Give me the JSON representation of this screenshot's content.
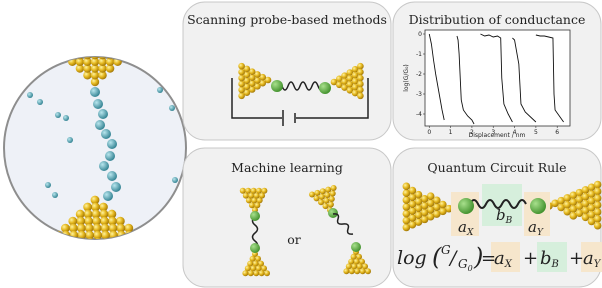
{
  "panels": {
    "scanning": {
      "title": "Scanning probe-based methods"
    },
    "distribution": {
      "title": "Distribution of conductance"
    },
    "machine": {
      "title": "Machine learning",
      "or": "or"
    },
    "quantum": {
      "title": "Quantum Circuit Rule"
    }
  },
  "quantum": {
    "terms": [
      {
        "sym": "a",
        "sub": "X"
      },
      {
        "sym": "b",
        "sub": "B"
      },
      {
        "sym": "a",
        "sub": "Y"
      }
    ],
    "equation": {
      "func": "log",
      "open": "(",
      "num": "G",
      "slash": "/",
      "den": "G",
      "den_sub": "0",
      "close": ")",
      "eq": "=",
      "plus": "+"
    }
  },
  "chart_data": {
    "type": "line",
    "x_label": "Displacement / nm",
    "y_label": "log(G/G₀)",
    "xlim": [
      -0.2,
      6.6
    ],
    "ylim": [
      -4.6,
      0.2
    ],
    "xticks": [
      0,
      1,
      2,
      3,
      4,
      5,
      6
    ],
    "yticks": [
      0,
      -1,
      -2,
      -3,
      -4
    ],
    "series": [
      {
        "color": "#111111",
        "x": [
          0,
          0.1,
          0.2,
          0.3,
          0.4,
          0.5,
          0.6,
          0.7
        ],
        "values": [
          0,
          -0.5,
          -1.3,
          -2,
          -2.6,
          -3.2,
          -3.8,
          -4.3
        ]
      },
      {
        "color": "#111111",
        "x": [
          1.3,
          1.35,
          1.4,
          1.5,
          1.6,
          1.8,
          2.0,
          2.1
        ],
        "values": [
          -0.1,
          -0.3,
          -1,
          -3.3,
          -3.8,
          -4.1,
          -4.3,
          -4.5
        ]
      },
      {
        "color": "#111111",
        "x": [
          2.4,
          2.6,
          2.8,
          3.0,
          3.2,
          3.35,
          3.4,
          3.5,
          3.7,
          3.9
        ],
        "values": [
          0,
          -0.1,
          -0.05,
          -0.15,
          -0.1,
          -0.2,
          -2.2,
          -3.5,
          -4,
          -4.4
        ]
      },
      {
        "color": "#111111",
        "x": [
          3.9,
          4.0,
          4.2,
          4.3,
          4.5,
          4.8,
          5.0
        ],
        "values": [
          -0.2,
          -0.3,
          -1.5,
          -3.5,
          -3.9,
          -4.2,
          -4.4
        ]
      },
      {
        "color": "#111111",
        "x": [
          5.0,
          5.2,
          5.4,
          5.6,
          5.8,
          5.85,
          5.9,
          6.1,
          6.3
        ],
        "values": [
          -0.05,
          -0.1,
          -0.1,
          -0.15,
          -0.2,
          -3.0,
          -3.8,
          -4.1,
          -4.4
        ]
      }
    ]
  }
}
